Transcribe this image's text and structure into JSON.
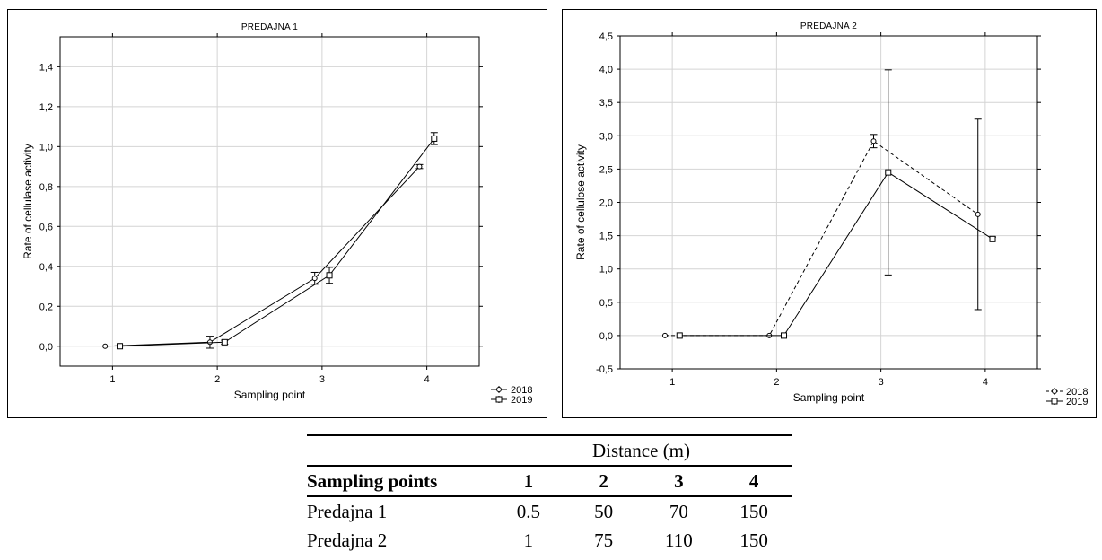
{
  "chart_data": [
    {
      "type": "line",
      "title": "PREDAJNA 1",
      "xlabel": "Sampling point",
      "ylabel": "Rate of cellulase activity",
      "x": [
        1,
        2,
        3,
        4
      ],
      "xticks": [
        "1",
        "2",
        "3",
        "4"
      ],
      "ylim": [
        -0.1,
        1.55
      ],
      "yticks": [
        0.0,
        0.2,
        0.4,
        0.6,
        0.8,
        1.0,
        1.2,
        1.4
      ],
      "ytick_labels": [
        "0,0",
        "0,2",
        "0,4",
        "0,6",
        "0,8",
        "1,0",
        "1,2",
        "1,4"
      ],
      "grid": true,
      "legend": "bottom-right",
      "series": [
        {
          "name": "2018",
          "values": [
            0.0,
            0.02,
            0.34,
            0.9
          ],
          "err": [
            0.003,
            0.03,
            0.03,
            0.01
          ],
          "style": "solid",
          "marker": "circle"
        },
        {
          "name": "2019",
          "values": [
            0.0,
            0.02,
            0.355,
            1.04
          ],
          "err": [
            0.003,
            0.01,
            0.04,
            0.03
          ],
          "style": "solid",
          "marker": "square"
        }
      ]
    },
    {
      "type": "line",
      "title": "PREDAJNA 2",
      "xlabel": "Sampling point",
      "ylabel": "Rate of cellulose activity",
      "x": [
        1,
        2,
        3,
        4
      ],
      "xticks": [
        "1",
        "2",
        "3",
        "4"
      ],
      "ylim": [
        -0.5,
        4.5
      ],
      "yticks": [
        -0.5,
        0.0,
        0.5,
        1.0,
        1.5,
        2.0,
        2.5,
        3.0,
        3.5,
        4.0,
        4.5
      ],
      "ytick_labels": [
        "-0,5",
        "0,0",
        "0,5",
        "1,0",
        "1,5",
        "2,0",
        "2,5",
        "3,0",
        "3,5",
        "4,0",
        "4,5"
      ],
      "grid": true,
      "legend": "bottom-right",
      "series": [
        {
          "name": "2018",
          "values": [
            0.0,
            0.0,
            2.92,
            1.82
          ],
          "err": [
            0.0,
            0.0,
            0.1,
            1.43
          ],
          "style": "dashed",
          "marker": "circle"
        },
        {
          "name": "2019",
          "values": [
            0.0,
            0.0,
            2.45,
            1.45
          ],
          "err": [
            0.0,
            0.0,
            1.54,
            0.03
          ],
          "style": "solid",
          "marker": "square"
        }
      ]
    }
  ],
  "table": {
    "super_header": "Distance (m)",
    "header": [
      "Sampling points",
      "1",
      "2",
      "3",
      "4"
    ],
    "rows": [
      [
        "Predajna 1",
        "0.5",
        "50",
        "70",
        "150"
      ],
      [
        "Predajna 2",
        "1",
        "75",
        "110",
        "150"
      ]
    ]
  }
}
